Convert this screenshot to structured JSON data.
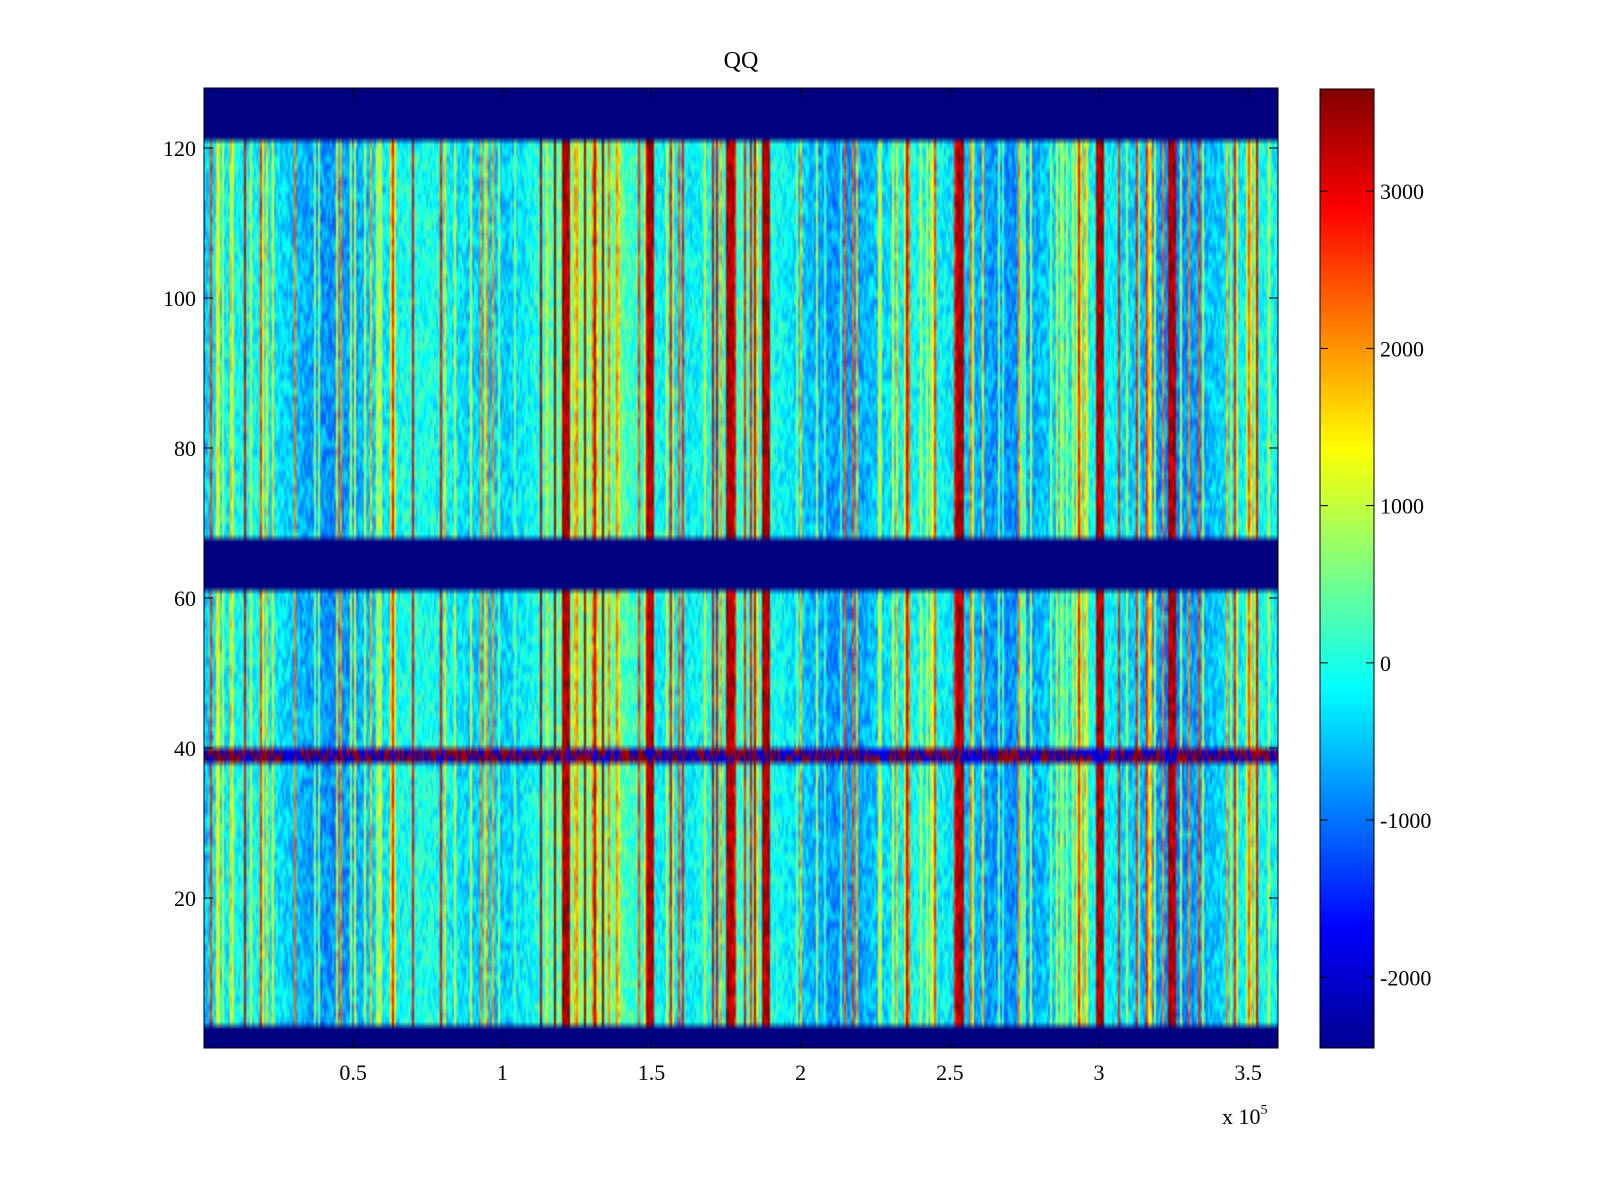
{
  "chart_data": {
    "type": "heatmap",
    "title": "QQ",
    "xlabel": "",
    "ylabel": "",
    "x_range": [
      0,
      360000
    ],
    "y_range": [
      0,
      128
    ],
    "x_ticks": [
      50000,
      100000,
      150000,
      200000,
      250000,
      300000,
      350000
    ],
    "x_tick_labels": [
      "0.5",
      "1",
      "1.5",
      "2",
      "2.5",
      "3",
      "3.5"
    ],
    "x_exponent_base": "x 10",
    "x_exponent_power": "5",
    "y_ticks": [
      20,
      40,
      60,
      80,
      100,
      120
    ],
    "y_tick_labels": [
      "20",
      "40",
      "60",
      "80",
      "100",
      "120"
    ],
    "colormap": "jet",
    "color_range": [
      -2450,
      3650
    ],
    "colorbar_ticks": [
      -2000,
      -1000,
      0,
      1000,
      2000,
      3000
    ],
    "colorbar_tick_labels": [
      "-2000",
      "-1000",
      "0",
      "1000",
      "2000",
      "3000"
    ],
    "masked_rows": [
      {
        "from": 0,
        "to": 3.3,
        "value": -2450
      },
      {
        "from": 61.5,
        "to": 67.5,
        "value": -2450
      },
      {
        "from": 121.5,
        "to": 128,
        "value": -2450
      }
    ],
    "anomalous_row": {
      "from": 38.3,
      "to": 39.7,
      "description": "alternating extreme values"
    },
    "strong_columns_x": [
      121000,
      149000,
      176000,
      188000,
      253000,
      300000,
      324000
    ],
    "grid": false
  }
}
